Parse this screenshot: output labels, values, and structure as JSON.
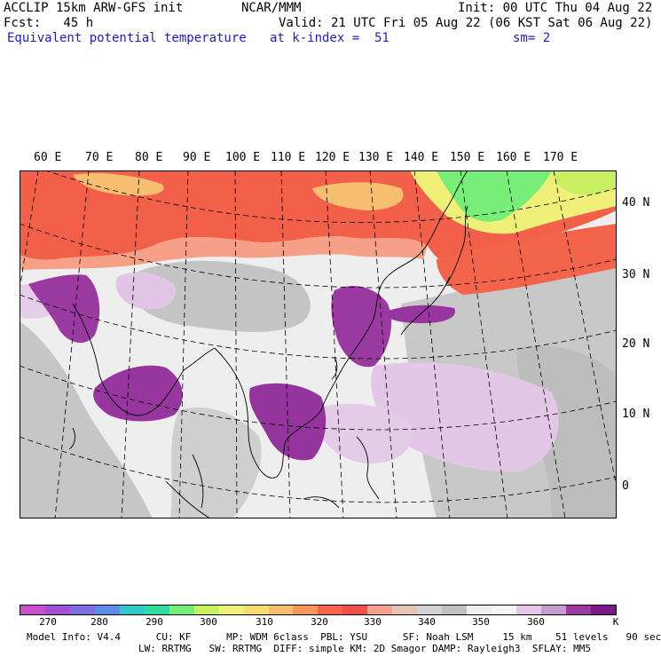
{
  "header": {
    "model_title": "ACCLIP 15km ARW-GFS init",
    "forecast_hour": "Fcst:   45 h",
    "field_name": "Equivalent potential temperature",
    "center": "NCAR/MMM",
    "init_time": "Init: 00 UTC Thu 04 Aug 22",
    "valid_time": "Valid: 21 UTC Fri 05 Aug 22 (06 KST Sat 06 Aug 22)",
    "level": "at k-index =  51",
    "smoothing": "sm= 2"
  },
  "map": {
    "longitude_labels": [
      "60 E",
      "70 E",
      "80 E",
      "90 E",
      "100 E",
      "110 E",
      "120 E",
      "130 E",
      "140 E",
      "150 E",
      "160 E",
      "170 E"
    ],
    "latitude_labels": [
      "40 N",
      "30 N",
      "20 N",
      "10 N",
      "0"
    ]
  },
  "colorbar": {
    "colors": [
      "#c850c8",
      "#a050d2",
      "#7c70dc",
      "#5e8ce6",
      "#30c8c8",
      "#30dca0",
      "#78ee78",
      "#c8f060",
      "#f0f078",
      "#f5dc6e",
      "#f6be6e",
      "#f6965a",
      "#f4644a",
      "#f0504a",
      "#f4a090",
      "#e6c4b4",
      "#d2d2d2",
      "#c0c0c0",
      "#eeeeee",
      "#f4f4f4",
      "#e6c8e6",
      "#c89ad2",
      "#9a3aa0",
      "#7a1a8a"
    ],
    "tick_labels": [
      "270",
      "280",
      "290",
      "300",
      "310",
      "320",
      "330",
      "340",
      "350",
      "360",
      "K"
    ]
  },
  "footer": {
    "line1": "Model Info: V4.4      CU: KF      MP: WDM 6class  PBL: YSU      SF: Noah LSM     15 km    51 levels   90 sec",
    "line2": "LW: RRTMG   SW: RRTMG  DIFF: simple KM: 2D Smagor DAMP: Rayleigh3  SFLAY: MM5"
  }
}
